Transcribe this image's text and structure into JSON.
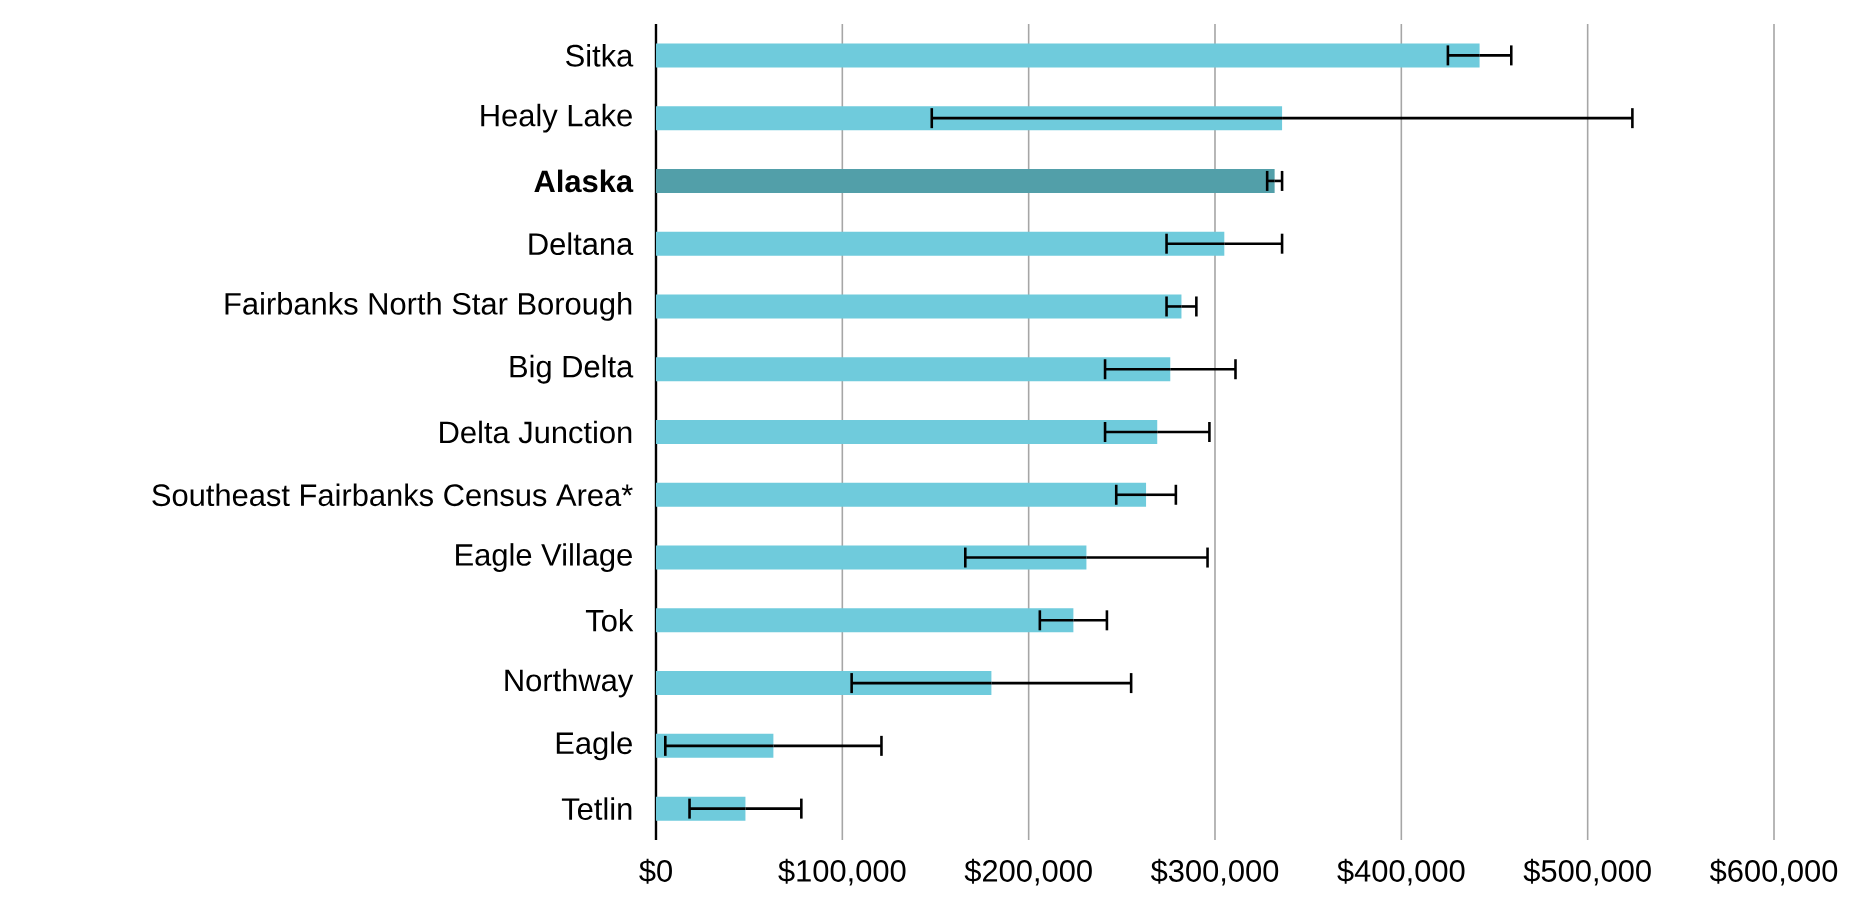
{
  "chart_data": {
    "type": "bar",
    "orientation": "horizontal",
    "categories": [
      "Sitka",
      "Healy Lake",
      "**Alaska**",
      "Deltana",
      "Fairbanks North Star Borough",
      "Big Delta",
      "Delta Junction",
      "Southeast Fairbanks Census Area*",
      "Eagle Village",
      "Tok",
      "Northway",
      "Eagle",
      "Tetlin"
    ],
    "values": [
      442000,
      336000,
      332000,
      305000,
      282000,
      276000,
      269000,
      263000,
      231000,
      224000,
      180000,
      63000,
      48000
    ],
    "errors": [
      17000,
      188000,
      4000,
      31000,
      8000,
      35000,
      28000,
      16000,
      65000,
      18000,
      75000,
      58000,
      30000
    ],
    "colors": [
      "#6fcbdc",
      "#6fcbdc",
      "#529fa9",
      "#6fcbdc",
      "#6fcbdc",
      "#6fcbdc",
      "#6fcbdc",
      "#6fcbdc",
      "#6fcbdc",
      "#6fcbdc",
      "#6fcbdc",
      "#6fcbdc",
      "#6fcbdc"
    ],
    "xlim": [
      0,
      600000
    ],
    "xticks": [
      {
        "value": 0,
        "label": "$0"
      },
      {
        "value": 100000,
        "label": "$100,000"
      },
      {
        "value": 200000,
        "label": "$200,000"
      },
      {
        "value": 300000,
        "label": "$300,000"
      },
      {
        "value": 400000,
        "label": "$400,000"
      },
      {
        "value": 500000,
        "label": "$500,000"
      },
      {
        "value": 600000,
        "label": "$600,000"
      }
    ],
    "grid": "x"
  }
}
